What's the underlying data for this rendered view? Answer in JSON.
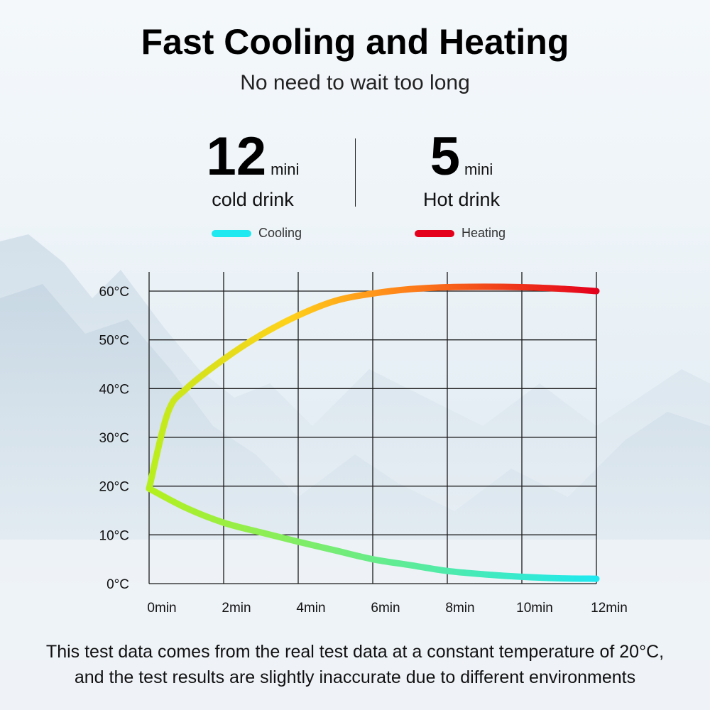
{
  "header": {
    "title": "Fast Cooling and Heating",
    "subtitle": "No need to wait too long"
  },
  "stats": [
    {
      "value": "12",
      "unit": "mini",
      "label": "cold drink"
    },
    {
      "value": "5",
      "unit": "mini",
      "label": "Hot drink"
    }
  ],
  "colors": {
    "cooling": "#1ee8f0",
    "heating": "#e4001b",
    "mid_green": "#b5f01c",
    "mid_yellow": "#ffd21a",
    "mid_orange": "#ff8a1a",
    "grid": "#1a1a1a"
  },
  "chart_data": {
    "type": "line",
    "title": "",
    "xlabel": "",
    "ylabel": "",
    "x_ticks": [
      "0min",
      "2min",
      "4min",
      "6min",
      "8min",
      "10min",
      "12min"
    ],
    "y_ticks": [
      "0°C",
      "10°C",
      "20°C",
      "30°C",
      "40°C",
      "50°C",
      "60°C"
    ],
    "xlim": [
      0,
      12
    ],
    "ylim": [
      0,
      60
    ],
    "grid": true,
    "legend": {
      "placement": "top"
    },
    "series": [
      {
        "name": "Cooling",
        "color": "#1ee8f0",
        "x": [
          0,
          1,
          2,
          3,
          4,
          5,
          6,
          7,
          8,
          9,
          10,
          11,
          12
        ],
        "y": [
          19.5,
          15.5,
          12.5,
          10.5,
          8.6,
          6.8,
          5.0,
          3.8,
          2.6,
          1.9,
          1.4,
          1.1,
          1.0
        ]
      },
      {
        "name": "Heating",
        "color": "#e4001b",
        "x": [
          0,
          0.5,
          1,
          2,
          3,
          4,
          5,
          6,
          7,
          8,
          9,
          10,
          11,
          12
        ],
        "y": [
          19.5,
          35,
          40,
          46,
          51,
          55,
          58,
          59.5,
          60.4,
          60.8,
          60.9,
          60.8,
          60.5,
          60.0
        ]
      }
    ]
  },
  "footnote": {
    "line1": "This test data comes from the real test data at a constant temperature of 20°C,",
    "line2": "and the test results are slightly inaccurate due to different environments"
  }
}
